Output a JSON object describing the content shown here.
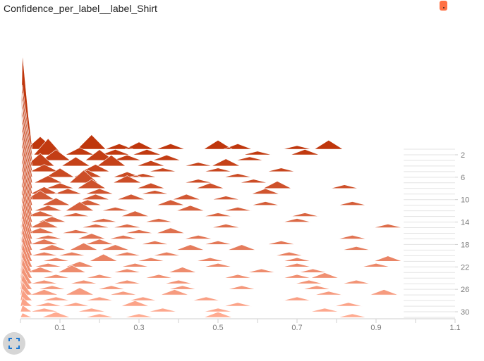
{
  "header": {
    "title": "Confidence_per_label__label_Shirt",
    "color_chip_label": "."
  },
  "controls": {
    "fullscreen_icon": "fullscreen-icon"
  },
  "colors": {
    "series_start": "#bf360c",
    "series_end": "#ffab91",
    "axis": "#cfcfcf",
    "tick_text": "#7a7a7a",
    "chip": "#ff7043",
    "button_bg": "#d6d6d6",
    "button_icon": "#1976d2"
  },
  "chart_data": {
    "type": "ridgeline-histogram",
    "title": "Confidence_per_label__label_Shirt",
    "xlabel": "",
    "ylabel": "",
    "xlim": [
      0,
      1.1
    ],
    "ylim": [
      0,
      31
    ],
    "x_ticks": [
      "0.1",
      "0.3",
      "0.5",
      "0.7",
      "0.9",
      "1.1"
    ],
    "y_ticks": [
      "2",
      "6",
      "10",
      "14",
      "18",
      "22",
      "26",
      "30"
    ],
    "steps": 31,
    "first_peak": 0.85,
    "base_height_at_zero": 0.18,
    "base_decay_to": 0.012,
    "bins": [
      [
        [
          0.05,
          0.07
        ],
        [
          0.18,
          0.08
        ],
        [
          0.25,
          0.03
        ],
        [
          0.3,
          0.04
        ],
        [
          0.38,
          0.03
        ],
        [
          0.5,
          0.05
        ],
        [
          0.55,
          0.03
        ],
        [
          0.78,
          0.05
        ],
        [
          0.7,
          0.02
        ]
      ],
      [
        [
          0.07,
          0.09
        ],
        [
          0.15,
          0.04
        ],
        [
          0.24,
          0.03
        ],
        [
          0.32,
          0.03
        ],
        [
          0.72,
          0.03
        ],
        [
          0.6,
          0.02
        ]
      ],
      [
        [
          0.09,
          0.06
        ],
        [
          0.2,
          0.06
        ],
        [
          0.27,
          0.03
        ],
        [
          0.37,
          0.03
        ],
        [
          0.58,
          0.02
        ]
      ],
      [
        [
          0.05,
          0.07
        ],
        [
          0.14,
          0.05
        ],
        [
          0.23,
          0.06
        ],
        [
          0.33,
          0.03
        ],
        [
          0.45,
          0.02
        ],
        [
          0.52,
          0.04
        ]
      ],
      [
        [
          0.06,
          0.04
        ],
        [
          0.19,
          0.04
        ],
        [
          0.36,
          0.02
        ],
        [
          0.5,
          0.02
        ],
        [
          0.66,
          0.02
        ]
      ],
      [
        [
          0.1,
          0.05
        ],
        [
          0.17,
          0.04
        ],
        [
          0.27,
          0.03
        ],
        [
          0.31,
          0.02
        ],
        [
          0.55,
          0.02
        ]
      ],
      [
        [
          0.07,
          0.04
        ],
        [
          0.16,
          0.07
        ],
        [
          0.27,
          0.04
        ],
        [
          0.45,
          0.02
        ],
        [
          0.59,
          0.02
        ]
      ],
      [
        [
          0.1,
          0.03
        ],
        [
          0.18,
          0.05
        ],
        [
          0.33,
          0.03
        ],
        [
          0.48,
          0.03
        ],
        [
          0.65,
          0.04
        ],
        [
          0.82,
          0.02
        ]
      ],
      [
        [
          0.06,
          0.04
        ],
        [
          0.12,
          0.03
        ],
        [
          0.2,
          0.03
        ],
        [
          0.34,
          0.02
        ],
        [
          0.62,
          0.03
        ]
      ],
      [
        [
          0.05,
          0.05
        ],
        [
          0.19,
          0.03
        ],
        [
          0.28,
          0.03
        ],
        [
          0.42,
          0.03
        ],
        [
          0.52,
          0.02
        ]
      ],
      [
        [
          0.09,
          0.04
        ],
        [
          0.17,
          0.03
        ],
        [
          0.38,
          0.03
        ],
        [
          0.62,
          0.02
        ],
        [
          0.84,
          0.02
        ]
      ],
      [
        [
          0.07,
          0.03
        ],
        [
          0.15,
          0.05
        ],
        [
          0.24,
          0.02
        ],
        [
          0.43,
          0.03
        ],
        [
          0.55,
          0.02
        ]
      ],
      [
        [
          0.05,
          0.03
        ],
        [
          0.14,
          0.02
        ],
        [
          0.29,
          0.03
        ],
        [
          0.5,
          0.02
        ],
        [
          0.72,
          0.02
        ]
      ],
      [
        [
          0.08,
          0.03
        ],
        [
          0.21,
          0.02
        ],
        [
          0.35,
          0.02
        ],
        [
          0.7,
          0.02
        ]
      ],
      [
        [
          0.06,
          0.04
        ],
        [
          0.19,
          0.02
        ],
        [
          0.27,
          0.02
        ],
        [
          0.52,
          0.02
        ],
        [
          0.93,
          0.02
        ]
      ],
      [
        [
          0.05,
          0.03
        ],
        [
          0.14,
          0.02
        ],
        [
          0.3,
          0.02
        ],
        [
          0.38,
          0.03
        ]
      ],
      [
        [
          0.07,
          0.02
        ],
        [
          0.18,
          0.03
        ],
        [
          0.26,
          0.02
        ],
        [
          0.45,
          0.02
        ],
        [
          0.84,
          0.02
        ]
      ],
      [
        [
          0.06,
          0.03
        ],
        [
          0.2,
          0.03
        ],
        [
          0.34,
          0.02
        ],
        [
          0.5,
          0.02
        ],
        [
          0.66,
          0.02
        ]
      ],
      [
        [
          0.08,
          0.03
        ],
        [
          0.16,
          0.04
        ],
        [
          0.24,
          0.03
        ],
        [
          0.43,
          0.03
        ],
        [
          0.56,
          0.03
        ],
        [
          0.85,
          0.02
        ]
      ],
      [
        [
          0.06,
          0.02
        ],
        [
          0.13,
          0.02
        ],
        [
          0.27,
          0.02
        ],
        [
          0.37,
          0.02
        ],
        [
          0.68,
          0.02
        ]
      ],
      [
        [
          0.09,
          0.02
        ],
        [
          0.21,
          0.04
        ],
        [
          0.33,
          0.02
        ],
        [
          0.48,
          0.02
        ],
        [
          0.7,
          0.02
        ],
        [
          0.93,
          0.03
        ]
      ],
      [
        [
          0.07,
          0.02
        ],
        [
          0.15,
          0.03
        ],
        [
          0.29,
          0.02
        ],
        [
          0.5,
          0.02
        ],
        [
          0.7,
          0.02
        ],
        [
          0.9,
          0.02
        ]
      ],
      [
        [
          0.05,
          0.03
        ],
        [
          0.13,
          0.04
        ],
        [
          0.27,
          0.02
        ],
        [
          0.41,
          0.03
        ],
        [
          0.61,
          0.02
        ],
        [
          0.74,
          0.02
        ]
      ],
      [
        [
          0.09,
          0.02
        ],
        [
          0.2,
          0.02
        ],
        [
          0.35,
          0.02
        ],
        [
          0.55,
          0.02
        ],
        [
          0.7,
          0.02
        ],
        [
          0.77,
          0.03
        ]
      ],
      [
        [
          0.06,
          0.02
        ],
        [
          0.16,
          0.02
        ],
        [
          0.27,
          0.02
        ],
        [
          0.4,
          0.02
        ],
        [
          0.73,
          0.02
        ],
        [
          0.85,
          0.02
        ]
      ],
      [
        [
          0.08,
          0.02
        ],
        [
          0.23,
          0.02
        ],
        [
          0.41,
          0.02
        ],
        [
          0.56,
          0.02
        ],
        [
          0.75,
          0.02
        ]
      ],
      [
        [
          0.06,
          0.03
        ],
        [
          0.15,
          0.04
        ],
        [
          0.26,
          0.02
        ],
        [
          0.39,
          0.03
        ],
        [
          0.78,
          0.02
        ],
        [
          0.92,
          0.03
        ]
      ],
      [
        [
          0.09,
          0.02
        ],
        [
          0.2,
          0.02
        ],
        [
          0.31,
          0.02
        ],
        [
          0.47,
          0.02
        ],
        [
          0.7,
          0.02
        ]
      ],
      [
        [
          0.07,
          0.02
        ],
        [
          0.14,
          0.02
        ],
        [
          0.29,
          0.03
        ],
        [
          0.55,
          0.02
        ],
        [
          0.83,
          0.02
        ]
      ],
      [
        [
          0.06,
          0.02
        ],
        [
          0.18,
          0.02
        ],
        [
          0.36,
          0.02
        ],
        [
          0.5,
          0.02
        ],
        [
          0.77,
          0.02
        ]
      ],
      [
        [
          0.09,
          0.03
        ],
        [
          0.2,
          0.02
        ],
        [
          0.3,
          0.02
        ],
        [
          0.5,
          0.03
        ],
        [
          0.84,
          0.02
        ]
      ]
    ]
  }
}
